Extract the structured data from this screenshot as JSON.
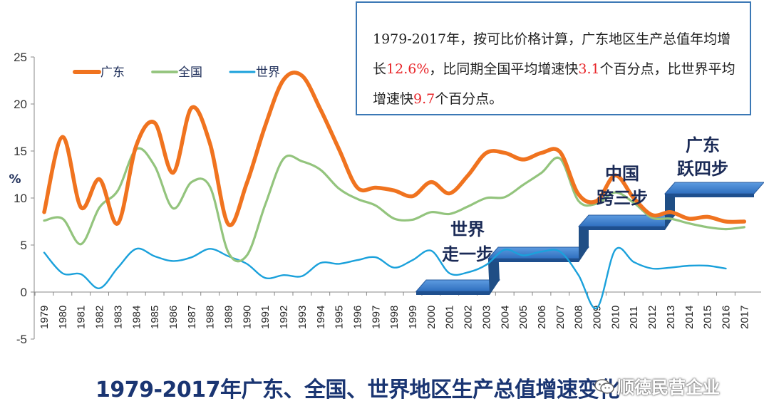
{
  "chart_data": {
    "type": "line",
    "title": "1979-2017年广东、全国、世界地区生产总值增速变化",
    "ylabel": "%",
    "xlabel": "",
    "ylim": [
      -5,
      25
    ],
    "yticks": [
      "25",
      "20",
      "15",
      "10",
      "5",
      "0",
      "-5"
    ],
    "grid": false,
    "legend_position": "top-left",
    "categories": [
      "1979",
      "1980",
      "1981",
      "1982",
      "1983",
      "1984",
      "1985",
      "1986",
      "1987",
      "1988",
      "1989",
      "1990",
      "1991",
      "1992",
      "1993",
      "1994",
      "1995",
      "1996",
      "1997",
      "1998",
      "1999",
      "2000",
      "2001",
      "2002",
      "2003",
      "2004",
      "2005",
      "2006",
      "2007",
      "2008",
      "2009",
      "2010",
      "2011",
      "2012",
      "2013",
      "2014",
      "2015",
      "2016",
      "2017"
    ],
    "series": [
      {
        "name": "广东",
        "color": "#f0731f",
        "values": [
          8.5,
          16.5,
          9.0,
          12.0,
          7.3,
          15.6,
          18.0,
          12.7,
          19.6,
          15.8,
          7.2,
          11.6,
          17.7,
          22.6,
          23.0,
          19.4,
          15.2,
          11.1,
          11.1,
          10.8,
          10.2,
          11.7,
          10.5,
          12.4,
          14.8,
          14.8,
          14.1,
          14.8,
          14.9,
          10.4,
          9.7,
          12.4,
          10.0,
          8.2,
          8.5,
          7.8,
          8.0,
          7.5,
          7.5
        ]
      },
      {
        "name": "全国",
        "color": "#93c47d",
        "values": [
          7.6,
          7.8,
          5.1,
          9.0,
          10.8,
          15.2,
          13.4,
          8.9,
          11.7,
          11.2,
          4.2,
          3.9,
          9.3,
          14.2,
          13.9,
          13.0,
          11.0,
          9.9,
          9.2,
          7.8,
          7.7,
          8.5,
          8.3,
          9.1,
          10.0,
          10.1,
          11.4,
          12.7,
          14.2,
          9.7,
          9.4,
          10.6,
          9.5,
          7.9,
          7.8,
          7.3,
          6.9,
          6.7,
          6.9
        ]
      },
      {
        "name": "世界",
        "color": "#1ba1db",
        "values": [
          4.2,
          2.0,
          1.9,
          0.4,
          2.6,
          4.6,
          3.8,
          3.3,
          3.7,
          4.6,
          3.8,
          3.0,
          1.5,
          1.8,
          1.7,
          3.1,
          3.0,
          3.4,
          3.7,
          2.6,
          3.4,
          4.4,
          2.0,
          2.1,
          2.9,
          4.5,
          3.9,
          4.3,
          4.3,
          1.8,
          -1.7,
          4.5,
          3.2,
          2.5,
          2.6,
          2.8,
          2.8,
          2.5,
          null
        ]
      }
    ],
    "annotations": [
      {
        "line1": "世界",
        "line2": "走一步"
      },
      {
        "line1": "中国",
        "line2": "跨三步"
      },
      {
        "line1": "广东",
        "line2": "跃四步"
      }
    ],
    "note": {
      "part1": "1979-2017年，按可比价格计算，广东地区生产总值年均增长",
      "v1": "12.6%",
      "part2": "，比同期全国平均增速快",
      "v2": "3.1",
      "part3": "个百分点，比世界平均增速快",
      "v3": "9.7",
      "part4": "个百分点。"
    }
  },
  "watermark": {
    "text": "顺德民营企业",
    "icon": "wechat-icon"
  }
}
